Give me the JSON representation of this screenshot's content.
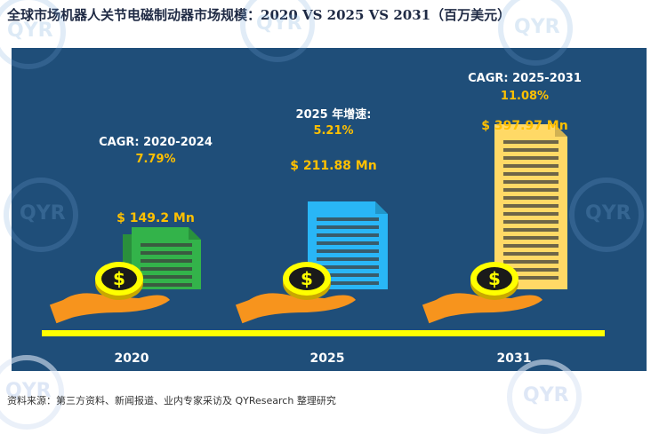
{
  "title": "全球市场机器人关节电磁制动器市场规模：2020 VS 2025 VS 2031（百万美元）",
  "source": "资料来源：第三方资料、新闻报道、业内专家采访及 QYResearch 整理研究",
  "watermark_text": "QYR",
  "colors": {
    "panel": "#1f4e79",
    "doc_2020": "#33b34a",
    "doc_2025": "#29b6f6",
    "doc_2031": "#ffd966",
    "coin": "#ffff00",
    "hand": "#f7941d",
    "axis": "#ffff00",
    "label_yellow": "#ffc000"
  },
  "chart_data": {
    "type": "bar",
    "title": "全球市场机器人关节电磁制动器市场规模：2020 VS 2025 VS 2031（百万美元）",
    "categories": [
      "2020",
      "2025",
      "2031"
    ],
    "values": [
      149.2,
      211.88,
      397.97
    ],
    "value_labels": [
      "$ 149.2 Mn",
      "$ 211.88 Mn",
      "$ 397.97 Mn"
    ],
    "unit": "百万美元",
    "annotations": [
      {
        "label": "CAGR: 2020-2024",
        "value": "7.79%"
      },
      {
        "label": "2025 年增速:",
        "value": "5.21%"
      },
      {
        "label": "CAGR: 2025-2031",
        "value": "11.08%"
      }
    ],
    "grid": false,
    "legend": "none"
  }
}
